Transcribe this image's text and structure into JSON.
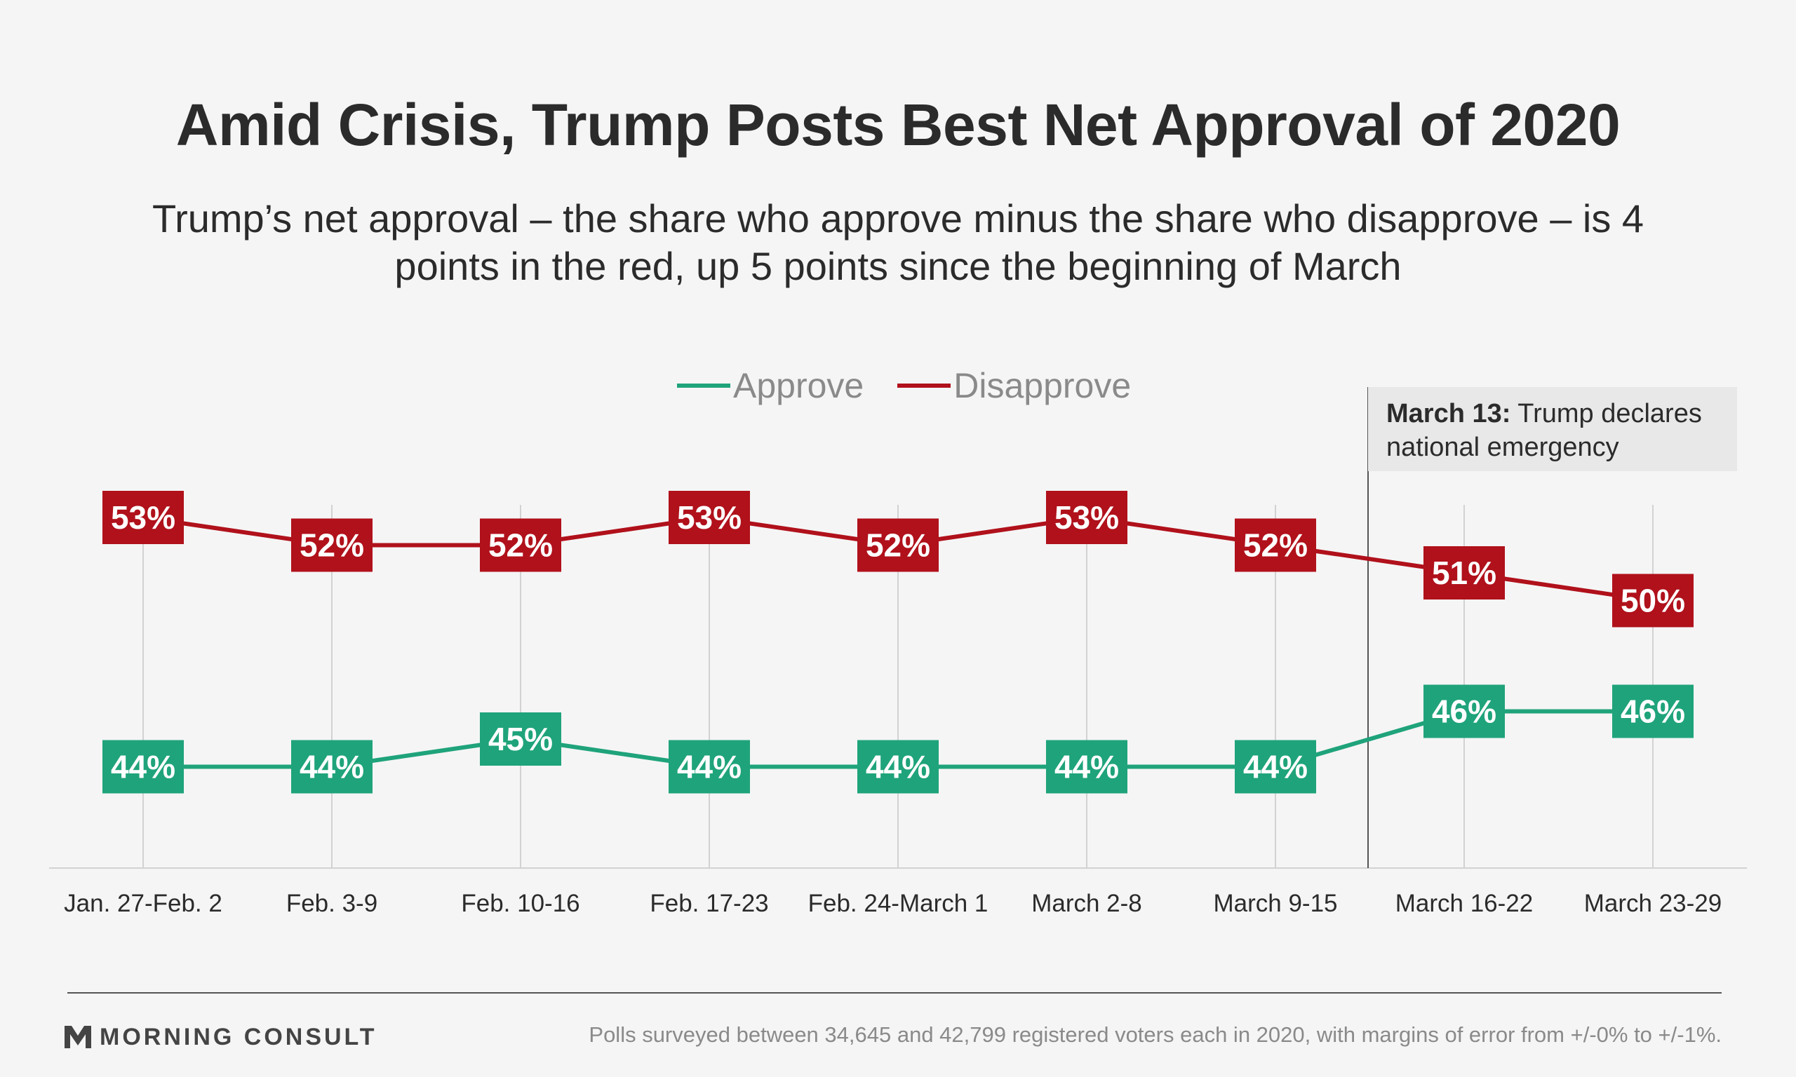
{
  "title": "Amid Crisis, Trump Posts Best Net Approval of 2020",
  "subtitle": "Trump’s net approval – the share who approve minus the share who disapprove – is 4 points in the red, up 5 points since the beginning of March",
  "legend": [
    {
      "label": "Approve",
      "color": "#1fa37a"
    },
    {
      "label": "Disapprove",
      "color": "#b0111b"
    }
  ],
  "annotation": {
    "bold": "March 13:",
    "text": " Trump declares national emergency"
  },
  "footer": {
    "brand": "MORNING CONSULT",
    "source": "Polls surveyed between 34,645 and 42,799 registered voters each in 2020, with margins of error from +/-0% to +/-1%."
  },
  "chart_data": {
    "type": "line",
    "categories": [
      "Jan. 27-Feb. 2",
      "Feb. 3-9",
      "Feb. 10-16",
      "Feb. 17-23",
      "Feb. 24-March 1",
      "March 2-8",
      "March 9-15",
      "March 16-22",
      "March 23-29"
    ],
    "series": [
      {
        "name": "Approve",
        "color": "#1fa37a",
        "values": [
          44,
          44,
          45,
          44,
          44,
          44,
          44,
          46,
          46
        ]
      },
      {
        "name": "Disapprove",
        "color": "#b0111b",
        "values": [
          53,
          52,
          52,
          53,
          52,
          53,
          52,
          51,
          50
        ]
      }
    ],
    "value_suffix": "%",
    "ylim": [
      40,
      55
    ],
    "event_marker": {
      "after_category_index": 6,
      "label": "March 13: Trump declares national emergency"
    },
    "grid": "vertical",
    "legend_position": "top-center",
    "xlabel": "",
    "ylabel": ""
  }
}
